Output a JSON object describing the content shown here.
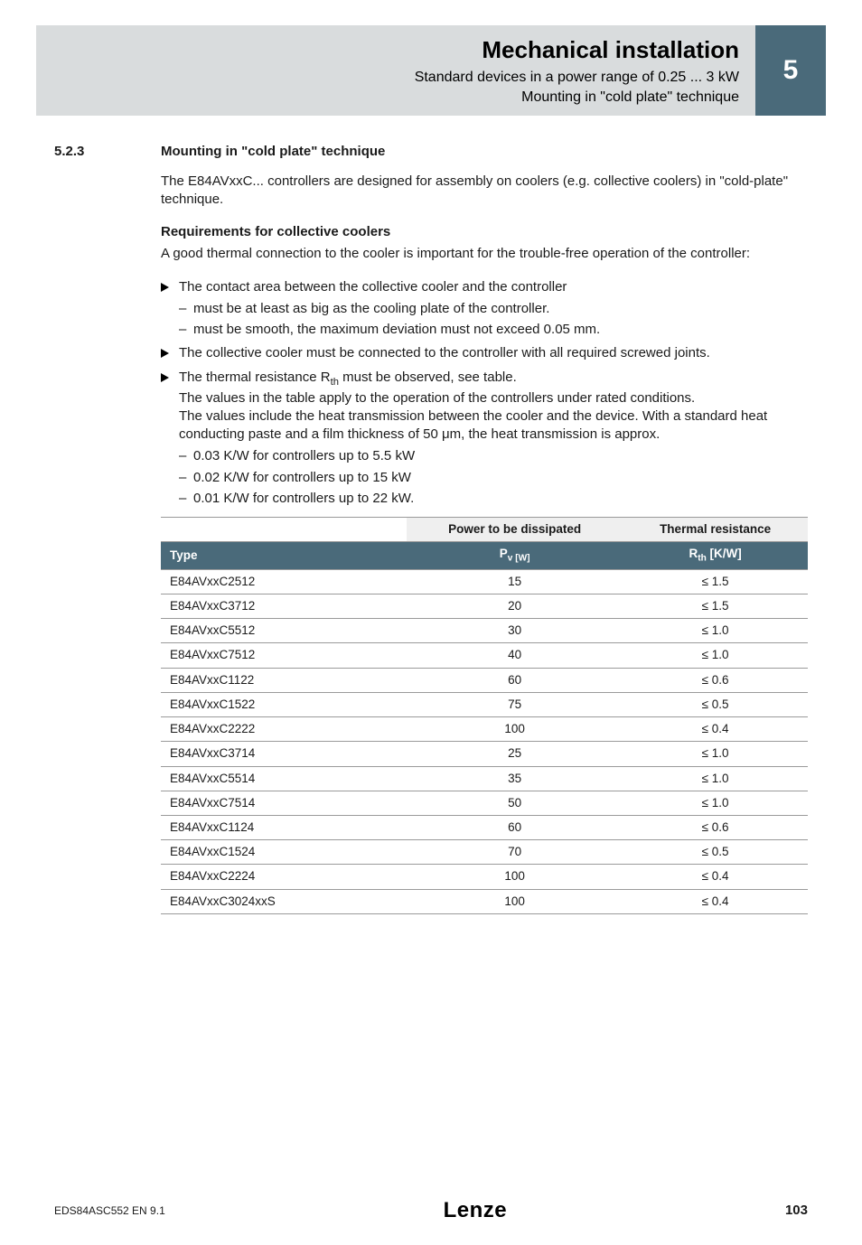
{
  "header": {
    "chapter_title": "Mechanical installation",
    "sub1": "Standard devices in a power range of 0.25 ... 3 kW",
    "sub2": "Mounting in \"cold plate\" technique",
    "chapter_number": "5"
  },
  "section": {
    "number": "5.2.3",
    "title": "Mounting in \"cold plate\" technique",
    "intro": "The E84AVxxC... controllers are designed for assembly on coolers (e.g. collective coolers) in \"cold-plate\" technique.",
    "req_head": "Requirements for collective coolers",
    "req_intro": "A good thermal connection to the cooler is important for the trouble-free operation of the controller:",
    "bullets": [
      {
        "text": "The contact area between the collective cooler and the controller",
        "dashes": [
          "must be at least as big as the cooling plate of the controller.",
          "must be smooth, the maximum deviation must not exceed 0.05 mm."
        ]
      },
      {
        "text": "The collective cooler must be connected to the controller with all required screwed joints.",
        "dashes": []
      }
    ],
    "thermal_bullet_pre": "The thermal resistance R",
    "thermal_bullet_post": " must be observed, see table.",
    "thermal_para1": "The values in the table apply to the operation of the controllers under rated conditions.",
    "thermal_para2_pre": "The values include the heat transmission between the cooler and the device. With a standard heat conducting paste and a film thickness of 50 ",
    "thermal_para2_post": "m, the heat transmission is approx.",
    "thermal_dashes": [
      "0.03 K/W for controllers up to 5.5 kW",
      "0.02 K/W for controllers up to 15 kW",
      "0.01 K/W for controllers up to 22 kW."
    ]
  },
  "table": {
    "head_power": "Power to be dissipated",
    "head_thermal": "Thermal resistance",
    "head_type": "Type",
    "head_pv_pre": "P",
    "head_pv_sub": "v [W]",
    "head_rth_pre": "R",
    "head_rth_sub": "th",
    "head_rth_post": " [K/W]",
    "rows": [
      {
        "type": "E84AVxxC2512",
        "pv": "15",
        "rth": "≤ 1.5"
      },
      {
        "type": "E84AVxxC3712",
        "pv": "20",
        "rth": "≤ 1.5"
      },
      {
        "type": "E84AVxxC5512",
        "pv": "30",
        "rth": "≤ 1.0"
      },
      {
        "type": "E84AVxxC7512",
        "pv": "40",
        "rth": "≤ 1.0"
      },
      {
        "type": "E84AVxxC1122",
        "pv": "60",
        "rth": "≤ 0.6"
      },
      {
        "type": "E84AVxxC1522",
        "pv": "75",
        "rth": "≤ 0.5"
      },
      {
        "type": "E84AVxxC2222",
        "pv": "100",
        "rth": "≤ 0.4"
      },
      {
        "type": "E84AVxxC3714",
        "pv": "25",
        "rth": "≤ 1.0"
      },
      {
        "type": "E84AVxxC5514",
        "pv": "35",
        "rth": "≤ 1.0"
      },
      {
        "type": "E84AVxxC7514",
        "pv": "50",
        "rth": "≤ 1.0"
      },
      {
        "type": "E84AVxxC1124",
        "pv": "60",
        "rth": "≤ 0.6"
      },
      {
        "type": "E84AVxxC1524",
        "pv": "70",
        "rth": "≤ 0.5"
      },
      {
        "type": "E84AVxxC2224",
        "pv": "100",
        "rth": "≤ 0.4"
      },
      {
        "type": "E84AVxxC3024xxS",
        "pv": "100",
        "rth": "≤ 0.4"
      }
    ]
  },
  "footer": {
    "docid": "EDS84ASC552  EN  9.1",
    "page": "103",
    "logo_l": "L",
    "logo_rest": "enze"
  },
  "style": {
    "accent": "#4a6a7a",
    "gray_band": "#d9dcdd",
    "rule": "#9a9a9a"
  }
}
